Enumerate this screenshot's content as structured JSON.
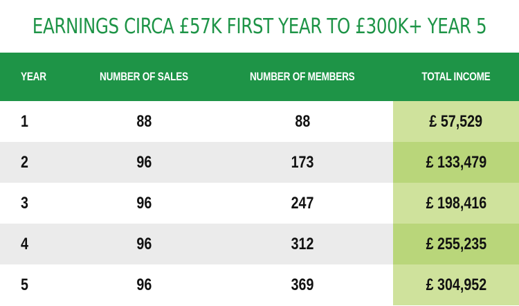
{
  "title": "EARNINGS CIRCA £57K FIRST YEAR TO £300K+ YEAR 5",
  "headers": {
    "year": "YEAR",
    "sales": "NUMBER OF SALES",
    "members": "NUMBER OF MEMBERS",
    "income": "TOTAL INCOME"
  },
  "rows": [
    {
      "year": "1",
      "sales": "88",
      "members": "88",
      "income": "£ 57,529"
    },
    {
      "year": "2",
      "sales": "96",
      "members": "173",
      "income": "£ 133,479"
    },
    {
      "year": "3",
      "sales": "96",
      "members": "247",
      "income": "£ 198,416"
    },
    {
      "year": "4",
      "sales": "96",
      "members": "312",
      "income": "£ 255,235"
    },
    {
      "year": "5",
      "sales": "96",
      "members": "369",
      "income": "£ 304,952"
    }
  ],
  "colors": {
    "brand_green": "#1e9447",
    "income_light": "#cfe29c",
    "income_dark": "#b9d67a",
    "row_stripe": "#ebebeb"
  }
}
